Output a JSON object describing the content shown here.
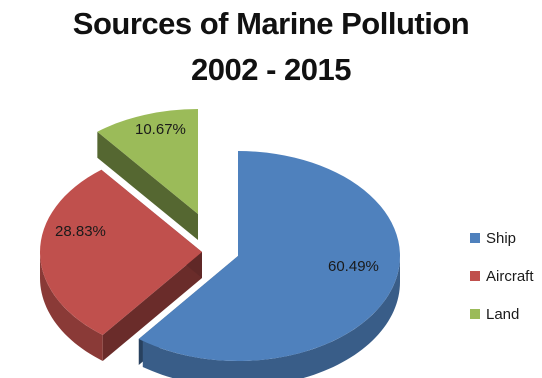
{
  "title_line_1": "Sources of Marine Pollution",
  "title_line_2": "2002 - 2015",
  "chart_data": {
    "type": "pie",
    "style": "3d exploded",
    "title": "Sources of Marine Pollution 2002 - 2015",
    "categories": [
      "Ship",
      "Aircraft",
      "Land"
    ],
    "values": [
      60.49,
      28.83,
      10.67
    ],
    "labels": [
      "60.49%",
      "28.83%",
      "10.67%"
    ],
    "colors": [
      "#4f81bd",
      "#c0504d",
      "#9bbb59"
    ],
    "legend_position": "right"
  }
}
